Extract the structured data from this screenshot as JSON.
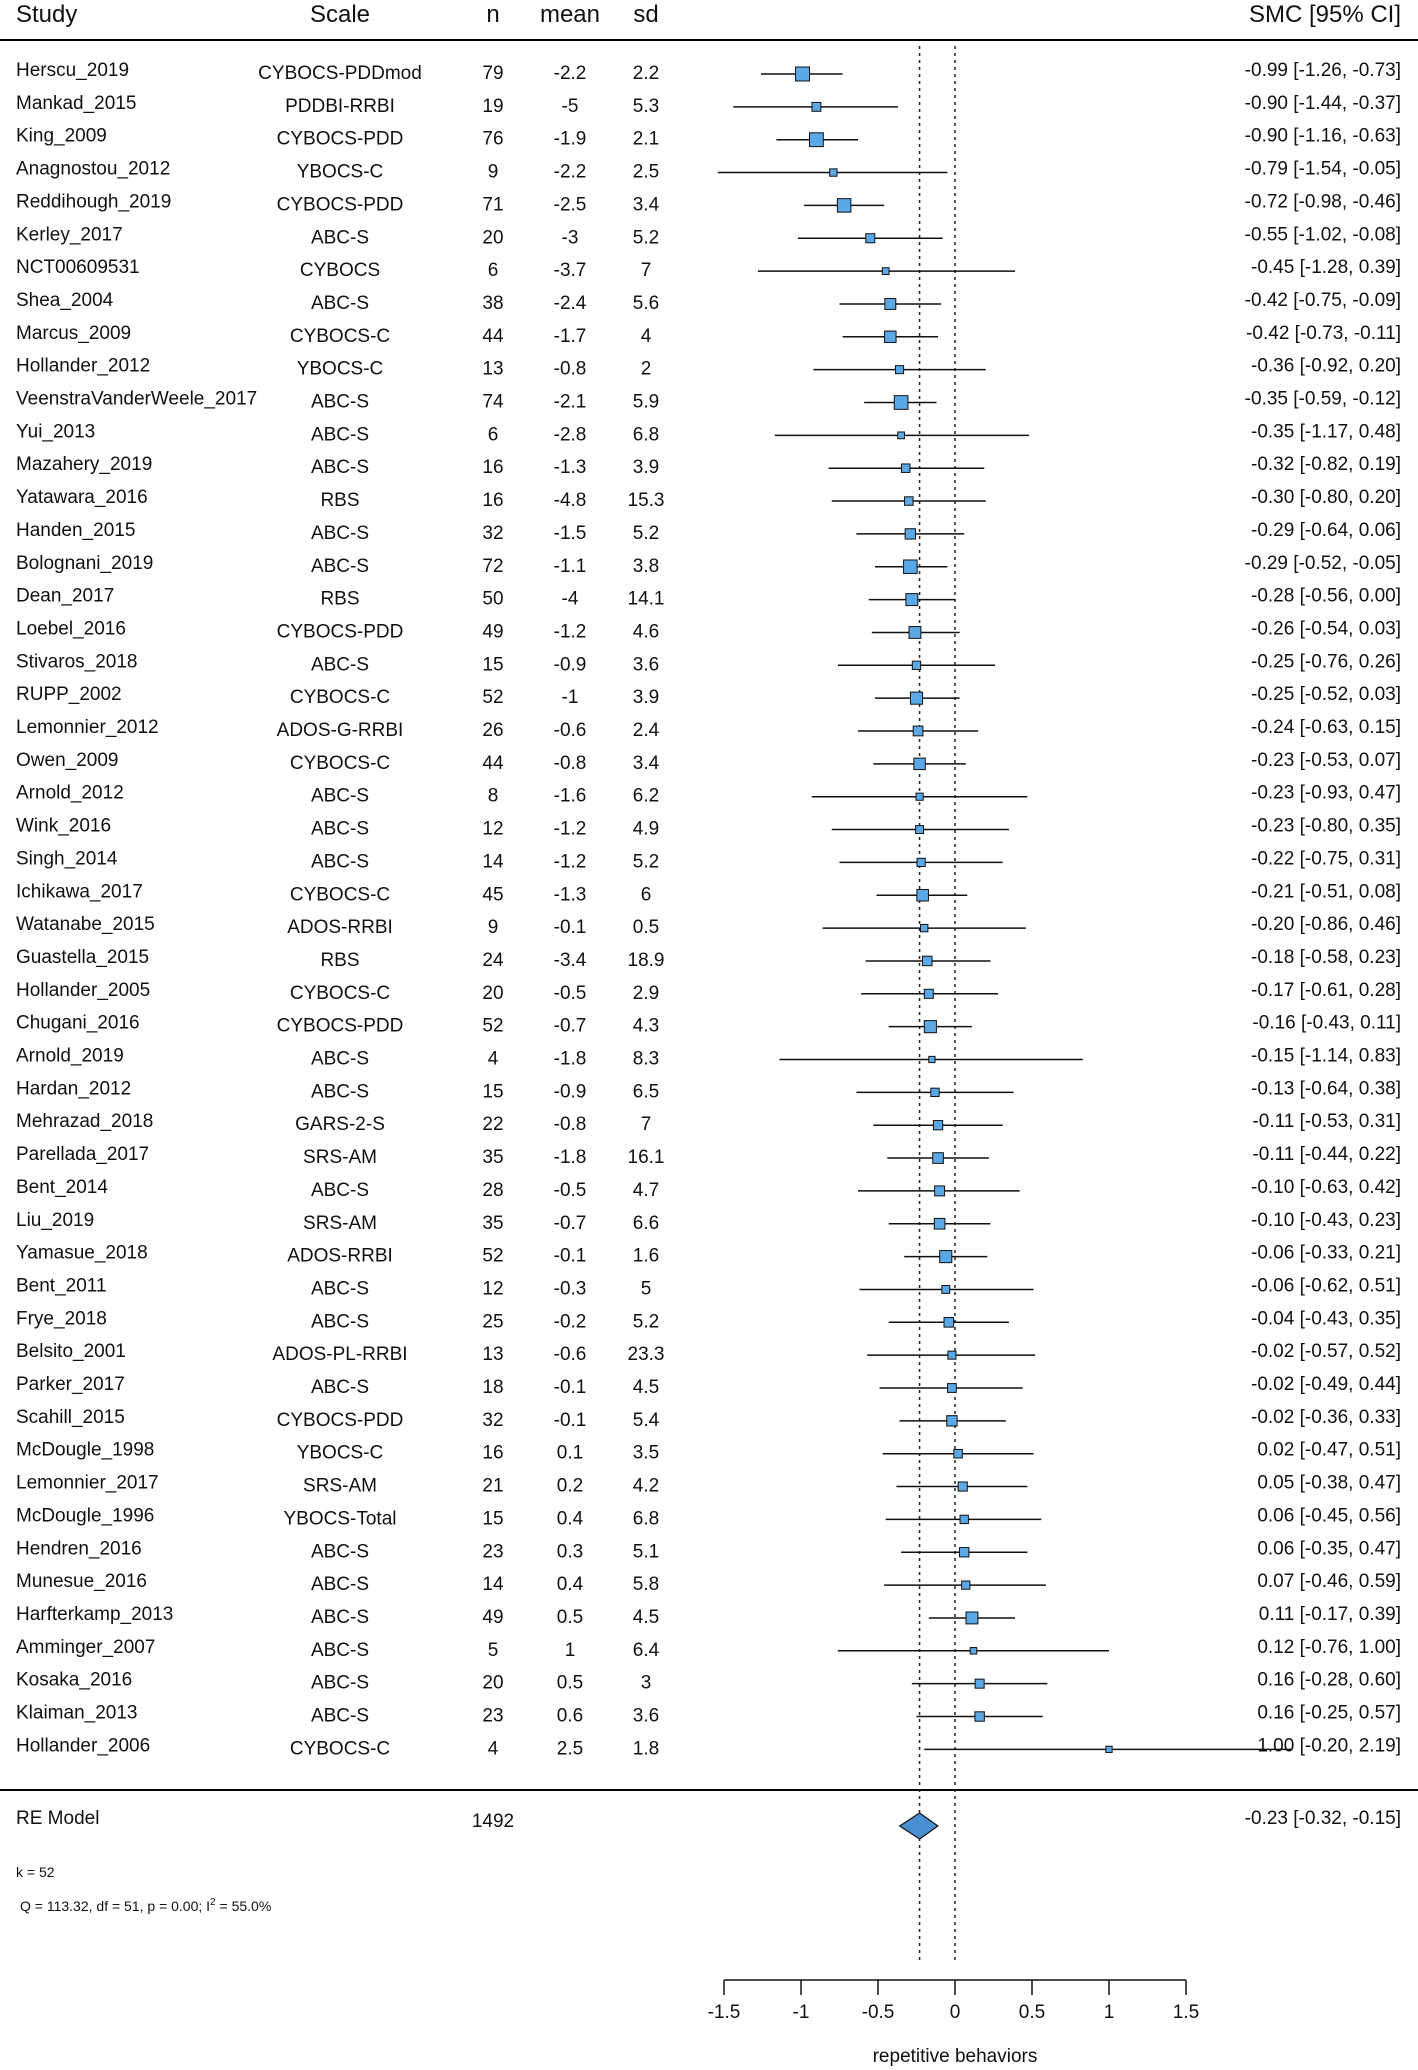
{
  "chart_data": {
    "type": "forest",
    "columns": {
      "study": "Study",
      "scale": "Scale",
      "n": "n",
      "mean": "mean",
      "sd": "sd",
      "ci": "SMC [95% CI]"
    },
    "xlabel": "repetitive behaviors",
    "xlim": [
      -1.5,
      1.5
    ],
    "xticks": [
      "-1.5",
      "-1",
      "-0.5",
      "0",
      "0.5",
      "1",
      "1.5"
    ],
    "reference_lines": [
      0,
      -0.23
    ],
    "rows": [
      {
        "study": "Herscu_2019",
        "scale": "CYBOCS-PDDmod",
        "n": "79",
        "mean": "-2.2",
        "sd": "2.2",
        "est": -0.99,
        "lo": -1.26,
        "hi": -0.73,
        "ci": "-0.99 [-1.26, -0.73]"
      },
      {
        "study": "Mankad_2015",
        "scale": "PDDBI-RRBI",
        "n": "19",
        "mean": "-5",
        "sd": "5.3",
        "est": -0.9,
        "lo": -1.44,
        "hi": -0.37,
        "ci": "-0.90 [-1.44, -0.37]"
      },
      {
        "study": "King_2009",
        "scale": "CYBOCS-PDD",
        "n": "76",
        "mean": "-1.9",
        "sd": "2.1",
        "est": -0.9,
        "lo": -1.16,
        "hi": -0.63,
        "ci": "-0.90 [-1.16, -0.63]"
      },
      {
        "study": "Anagnostou_2012",
        "scale": "YBOCS-C",
        "n": "9",
        "mean": "-2.2",
        "sd": "2.5",
        "est": -0.79,
        "lo": -1.54,
        "hi": -0.05,
        "ci": "-0.79 [-1.54, -0.05]"
      },
      {
        "study": "Reddihough_2019",
        "scale": "CYBOCS-PDD",
        "n": "71",
        "mean": "-2.5",
        "sd": "3.4",
        "est": -0.72,
        "lo": -0.98,
        "hi": -0.46,
        "ci": "-0.72 [-0.98, -0.46]"
      },
      {
        "study": "Kerley_2017",
        "scale": "ABC-S",
        "n": "20",
        "mean": "-3",
        "sd": "5.2",
        "est": -0.55,
        "lo": -1.02,
        "hi": -0.08,
        "ci": "-0.55 [-1.02, -0.08]"
      },
      {
        "study": "NCT00609531",
        "scale": "CYBOCS",
        "n": "6",
        "mean": "-3.7",
        "sd": "7",
        "est": -0.45,
        "lo": -1.28,
        "hi": 0.39,
        "ci": "-0.45 [-1.28,  0.39]"
      },
      {
        "study": "Shea_2004",
        "scale": "ABC-S",
        "n": "38",
        "mean": "-2.4",
        "sd": "5.6",
        "est": -0.42,
        "lo": -0.75,
        "hi": -0.09,
        "ci": "-0.42 [-0.75, -0.09]"
      },
      {
        "study": "Marcus_2009",
        "scale": "CYBOCS-C",
        "n": "44",
        "mean": "-1.7",
        "sd": "4",
        "est": -0.42,
        "lo": -0.73,
        "hi": -0.11,
        "ci": "-0.42 [-0.73, -0.11]"
      },
      {
        "study": "Hollander_2012",
        "scale": "YBOCS-C",
        "n": "13",
        "mean": "-0.8",
        "sd": "2",
        "est": -0.36,
        "lo": -0.92,
        "hi": 0.2,
        "ci": "-0.36 [-0.92,  0.20]"
      },
      {
        "study": "VeenstraVanderWeele_2017",
        "scale": "ABC-S",
        "n": "74",
        "mean": "-2.1",
        "sd": "5.9",
        "est": -0.35,
        "lo": -0.59,
        "hi": -0.12,
        "ci": "-0.35 [-0.59, -0.12]"
      },
      {
        "study": "Yui_2013",
        "scale": "ABC-S",
        "n": "6",
        "mean": "-2.8",
        "sd": "6.8",
        "est": -0.35,
        "lo": -1.17,
        "hi": 0.48,
        "ci": "-0.35 [-1.17,  0.48]"
      },
      {
        "study": "Mazahery_2019",
        "scale": "ABC-S",
        "n": "16",
        "mean": "-1.3",
        "sd": "3.9",
        "est": -0.32,
        "lo": -0.82,
        "hi": 0.19,
        "ci": "-0.32 [-0.82,  0.19]"
      },
      {
        "study": "Yatawara_2016",
        "scale": "RBS",
        "n": "16",
        "mean": "-4.8",
        "sd": "15.3",
        "est": -0.3,
        "lo": -0.8,
        "hi": 0.2,
        "ci": "-0.30 [-0.80,  0.20]"
      },
      {
        "study": "Handen_2015",
        "scale": "ABC-S",
        "n": "32",
        "mean": "-1.5",
        "sd": "5.2",
        "est": -0.29,
        "lo": -0.64,
        "hi": 0.06,
        "ci": "-0.29 [-0.64,  0.06]"
      },
      {
        "study": "Bolognani_2019",
        "scale": "ABC-S",
        "n": "72",
        "mean": "-1.1",
        "sd": "3.8",
        "est": -0.29,
        "lo": -0.52,
        "hi": -0.05,
        "ci": "-0.29 [-0.52, -0.05]"
      },
      {
        "study": "Dean_2017",
        "scale": "RBS",
        "n": "50",
        "mean": "-4",
        "sd": "14.1",
        "est": -0.28,
        "lo": -0.56,
        "hi": 0.0,
        "ci": "-0.28 [-0.56,  0.00]"
      },
      {
        "study": "Loebel_2016",
        "scale": "CYBOCS-PDD",
        "n": "49",
        "mean": "-1.2",
        "sd": "4.6",
        "est": -0.26,
        "lo": -0.54,
        "hi": 0.03,
        "ci": "-0.26 [-0.54,  0.03]"
      },
      {
        "study": "Stivaros_2018",
        "scale": "ABC-S",
        "n": "15",
        "mean": "-0.9",
        "sd": "3.6",
        "est": -0.25,
        "lo": -0.76,
        "hi": 0.26,
        "ci": "-0.25 [-0.76,  0.26]"
      },
      {
        "study": "RUPP_2002",
        "scale": "CYBOCS-C",
        "n": "52",
        "mean": "-1",
        "sd": "3.9",
        "est": -0.25,
        "lo": -0.52,
        "hi": 0.03,
        "ci": "-0.25 [-0.52,  0.03]"
      },
      {
        "study": "Lemonnier_2012",
        "scale": "ADOS-G-RRBI",
        "n": "26",
        "mean": "-0.6",
        "sd": "2.4",
        "est": -0.24,
        "lo": -0.63,
        "hi": 0.15,
        "ci": "-0.24 [-0.63,  0.15]"
      },
      {
        "study": "Owen_2009",
        "scale": "CYBOCS-C",
        "n": "44",
        "mean": "-0.8",
        "sd": "3.4",
        "est": -0.23,
        "lo": -0.53,
        "hi": 0.07,
        "ci": "-0.23 [-0.53,  0.07]"
      },
      {
        "study": "Arnold_2012",
        "scale": "ABC-S",
        "n": "8",
        "mean": "-1.6",
        "sd": "6.2",
        "est": -0.23,
        "lo": -0.93,
        "hi": 0.47,
        "ci": "-0.23 [-0.93,  0.47]"
      },
      {
        "study": "Wink_2016",
        "scale": "ABC-S",
        "n": "12",
        "mean": "-1.2",
        "sd": "4.9",
        "est": -0.23,
        "lo": -0.8,
        "hi": 0.35,
        "ci": "-0.23 [-0.80,  0.35]"
      },
      {
        "study": "Singh_2014",
        "scale": "ABC-S",
        "n": "14",
        "mean": "-1.2",
        "sd": "5.2",
        "est": -0.22,
        "lo": -0.75,
        "hi": 0.31,
        "ci": "-0.22 [-0.75,  0.31]"
      },
      {
        "study": "Ichikawa_2017",
        "scale": "CYBOCS-C",
        "n": "45",
        "mean": "-1.3",
        "sd": "6",
        "est": -0.21,
        "lo": -0.51,
        "hi": 0.08,
        "ci": "-0.21 [-0.51,  0.08]"
      },
      {
        "study": "Watanabe_2015",
        "scale": "ADOS-RRBI",
        "n": "9",
        "mean": "-0.1",
        "sd": "0.5",
        "est": -0.2,
        "lo": -0.86,
        "hi": 0.46,
        "ci": "-0.20 [-0.86,  0.46]"
      },
      {
        "study": "Guastella_2015",
        "scale": "RBS",
        "n": "24",
        "mean": "-3.4",
        "sd": "18.9",
        "est": -0.18,
        "lo": -0.58,
        "hi": 0.23,
        "ci": "-0.18 [-0.58,  0.23]"
      },
      {
        "study": "Hollander_2005",
        "scale": "CYBOCS-C",
        "n": "20",
        "mean": "-0.5",
        "sd": "2.9",
        "est": -0.17,
        "lo": -0.61,
        "hi": 0.28,
        "ci": "-0.17 [-0.61,  0.28]"
      },
      {
        "study": "Chugani_2016",
        "scale": "CYBOCS-PDD",
        "n": "52",
        "mean": "-0.7",
        "sd": "4.3",
        "est": -0.16,
        "lo": -0.43,
        "hi": 0.11,
        "ci": "-0.16 [-0.43,  0.11]"
      },
      {
        "study": "Arnold_2019",
        "scale": "ABC-S",
        "n": "4",
        "mean": "-1.8",
        "sd": "8.3",
        "est": -0.15,
        "lo": -1.14,
        "hi": 0.83,
        "ci": "-0.15 [-1.14,  0.83]"
      },
      {
        "study": "Hardan_2012",
        "scale": "ABC-S",
        "n": "15",
        "mean": "-0.9",
        "sd": "6.5",
        "est": -0.13,
        "lo": -0.64,
        "hi": 0.38,
        "ci": "-0.13 [-0.64,  0.38]"
      },
      {
        "study": "Mehrazad_2018",
        "scale": "GARS-2-S",
        "n": "22",
        "mean": "-0.8",
        "sd": "7",
        "est": -0.11,
        "lo": -0.53,
        "hi": 0.31,
        "ci": "-0.11 [-0.53,  0.31]"
      },
      {
        "study": "Parellada_2017",
        "scale": "SRS-AM",
        "n": "35",
        "mean": "-1.8",
        "sd": "16.1",
        "est": -0.11,
        "lo": -0.44,
        "hi": 0.22,
        "ci": "-0.11 [-0.44,  0.22]"
      },
      {
        "study": "Bent_2014",
        "scale": "ABC-S",
        "n": "28",
        "mean": "-0.5",
        "sd": "4.7",
        "est": -0.1,
        "lo": -0.63,
        "hi": 0.42,
        "ci": "-0.10 [-0.63,  0.42]"
      },
      {
        "study": "Liu_2019",
        "scale": "SRS-AM",
        "n": "35",
        "mean": "-0.7",
        "sd": "6.6",
        "est": -0.1,
        "lo": -0.43,
        "hi": 0.23,
        "ci": "-0.10 [-0.43,  0.23]"
      },
      {
        "study": "Yamasue_2018",
        "scale": "ADOS-RRBI",
        "n": "52",
        "mean": "-0.1",
        "sd": "1.6",
        "est": -0.06,
        "lo": -0.33,
        "hi": 0.21,
        "ci": "-0.06 [-0.33,  0.21]"
      },
      {
        "study": "Bent_2011",
        "scale": "ABC-S",
        "n": "12",
        "mean": "-0.3",
        "sd": "5",
        "est": -0.06,
        "lo": -0.62,
        "hi": 0.51,
        "ci": "-0.06 [-0.62,  0.51]"
      },
      {
        "study": "Frye_2018",
        "scale": "ABC-S",
        "n": "25",
        "mean": "-0.2",
        "sd": "5.2",
        "est": -0.04,
        "lo": -0.43,
        "hi": 0.35,
        "ci": "-0.04 [-0.43,  0.35]"
      },
      {
        "study": "Belsito_2001",
        "scale": "ADOS-PL-RRBI",
        "n": "13",
        "mean": "-0.6",
        "sd": "23.3",
        "est": -0.02,
        "lo": -0.57,
        "hi": 0.52,
        "ci": "-0.02 [-0.57,  0.52]"
      },
      {
        "study": "Parker_2017",
        "scale": "ABC-S",
        "n": "18",
        "mean": "-0.1",
        "sd": "4.5",
        "est": -0.02,
        "lo": -0.49,
        "hi": 0.44,
        "ci": "-0.02 [-0.49,  0.44]"
      },
      {
        "study": "Scahill_2015",
        "scale": "CYBOCS-PDD",
        "n": "32",
        "mean": "-0.1",
        "sd": "5.4",
        "est": -0.02,
        "lo": -0.36,
        "hi": 0.33,
        "ci": "-0.02 [-0.36,  0.33]"
      },
      {
        "study": "McDougle_1998",
        "scale": "YBOCS-C",
        "n": "16",
        "mean": "0.1",
        "sd": "3.5",
        "est": 0.02,
        "lo": -0.47,
        "hi": 0.51,
        "ci": "0.02 [-0.47,  0.51]"
      },
      {
        "study": "Lemonnier_2017",
        "scale": "SRS-AM",
        "n": "21",
        "mean": "0.2",
        "sd": "4.2",
        "est": 0.05,
        "lo": -0.38,
        "hi": 0.47,
        "ci": "0.05 [-0.38,  0.47]"
      },
      {
        "study": "McDougle_1996",
        "scale": "YBOCS-Total",
        "n": "15",
        "mean": "0.4",
        "sd": "6.8",
        "est": 0.06,
        "lo": -0.45,
        "hi": 0.56,
        "ci": "0.06 [-0.45,  0.56]"
      },
      {
        "study": "Hendren_2016",
        "scale": "ABC-S",
        "n": "23",
        "mean": "0.3",
        "sd": "5.1",
        "est": 0.06,
        "lo": -0.35,
        "hi": 0.47,
        "ci": "0.06 [-0.35,  0.47]"
      },
      {
        "study": "Munesue_2016",
        "scale": "ABC-S",
        "n": "14",
        "mean": "0.4",
        "sd": "5.8",
        "est": 0.07,
        "lo": -0.46,
        "hi": 0.59,
        "ci": "0.07 [-0.46,  0.59]"
      },
      {
        "study": "Harfterkamp_2013",
        "scale": "ABC-S",
        "n": "49",
        "mean": "0.5",
        "sd": "4.5",
        "est": 0.11,
        "lo": -0.17,
        "hi": 0.39,
        "ci": "0.11 [-0.17,  0.39]"
      },
      {
        "study": "Amminger_2007",
        "scale": "ABC-S",
        "n": "5",
        "mean": "1",
        "sd": "6.4",
        "est": 0.12,
        "lo": -0.76,
        "hi": 1.0,
        "ci": "0.12 [-0.76,  1.00]"
      },
      {
        "study": "Kosaka_2016",
        "scale": "ABC-S",
        "n": "20",
        "mean": "0.5",
        "sd": "3",
        "est": 0.16,
        "lo": -0.28,
        "hi": 0.6,
        "ci": "0.16 [-0.28,  0.60]"
      },
      {
        "study": "Klaiman_2013",
        "scale": "ABC-S",
        "n": "23",
        "mean": "0.6",
        "sd": "3.6",
        "est": 0.16,
        "lo": -0.25,
        "hi": 0.57,
        "ci": "0.16 [-0.25,  0.57]"
      },
      {
        "study": "Hollander_2006",
        "scale": "CYBOCS-C",
        "n": "4",
        "mean": "2.5",
        "sd": "1.8",
        "est": 1.0,
        "lo": -0.2,
        "hi": 2.19,
        "ci": "1.00 [-0.20,  2.19]"
      }
    ],
    "summary": {
      "label": "RE Model",
      "n": "1492",
      "est": -0.23,
      "lo": -0.32,
      "hi": -0.15,
      "ci": "-0.23 [-0.32, -0.15]"
    },
    "k_text": "k = 52",
    "het_text": "Q = 113.32, df = 51, p = 0.00; I",
    "het_sup": "2",
    "het_tail": " = 55.0%",
    "marker_fill": "#5aa9e6",
    "diamond_fill": "#4a90d0"
  }
}
